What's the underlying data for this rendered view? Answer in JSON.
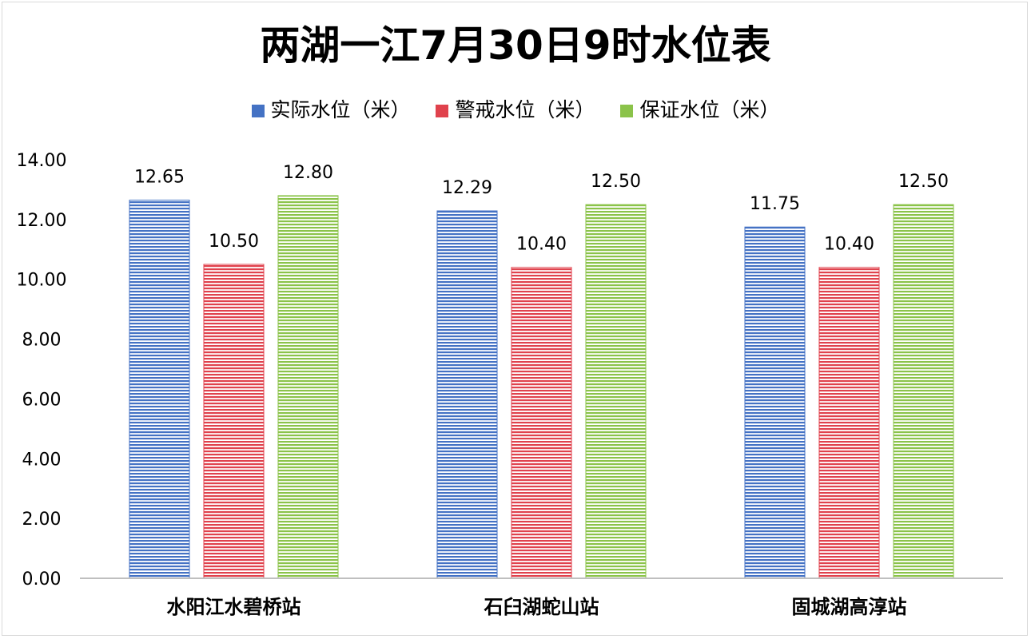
{
  "chart_data": {
    "type": "bar",
    "title": "两湖一江7月30日9时水位表",
    "categories": [
      "水阳江水碧桥站",
      "石臼湖蛇山站",
      "固城湖高淳站"
    ],
    "series": [
      {
        "name": "实际水位（米）",
        "values": [
          12.65,
          12.29,
          11.75
        ],
        "color": "#4472c4"
      },
      {
        "name": "警戒水位（米）",
        "values": [
          10.5,
          10.4,
          10.4
        ],
        "color": "#e0424d"
      },
      {
        "name": "保证水位（米）",
        "values": [
          12.8,
          12.5,
          12.5
        ],
        "color": "#8bc34a"
      }
    ],
    "ylim": [
      0,
      14
    ],
    "yticks": [
      "0.00",
      "2.00",
      "4.00",
      "6.00",
      "8.00",
      "10.00",
      "12.00",
      "14.00"
    ],
    "xlabel": "",
    "ylabel": "",
    "grid": false,
    "legend_position": "top"
  }
}
